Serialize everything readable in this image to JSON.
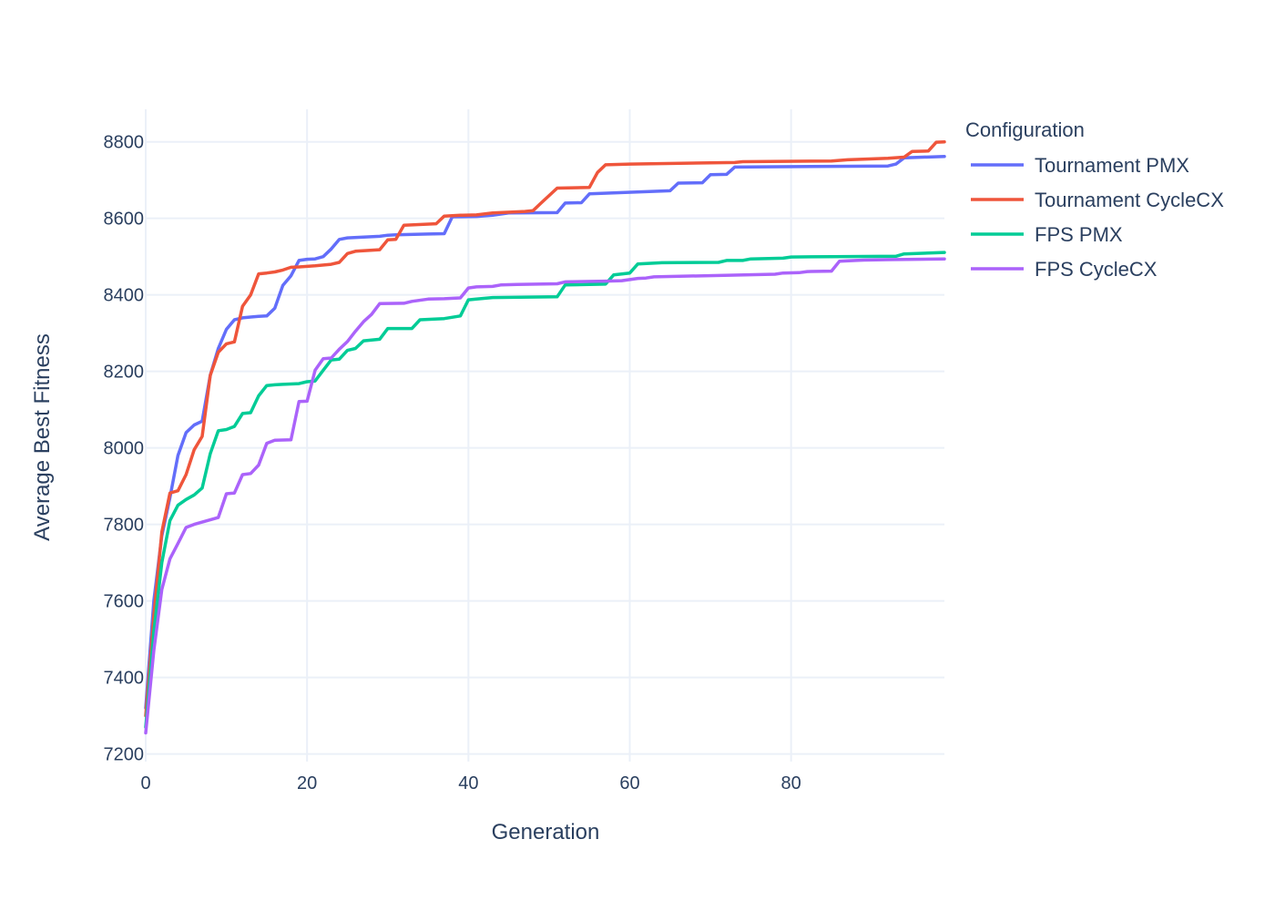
{
  "chart_data": {
    "type": "line",
    "xlabel": "Generation",
    "ylabel": "Average Best Fitness",
    "xlim": [
      0,
      99
    ],
    "ylim": [
      7180,
      8885
    ],
    "x_ticks": [
      0,
      20,
      40,
      60,
      80
    ],
    "y_ticks": [
      7200,
      7400,
      7600,
      7800,
      8000,
      8200,
      8400,
      8600,
      8800
    ],
    "grid": true,
    "legend": {
      "title": "Configuration",
      "position": "top-right outside"
    },
    "series": [
      {
        "name": "Tournament PMX",
        "color": "#636efa",
        "points": [
          [
            0,
            7320
          ],
          [
            1,
            7600
          ],
          [
            2,
            7770
          ],
          [
            3,
            7870
          ],
          [
            4,
            7980
          ],
          [
            5,
            8040
          ],
          [
            6,
            8060
          ],
          [
            7,
            8070
          ],
          [
            8,
            8190
          ],
          [
            9,
            8260
          ],
          [
            10,
            8310
          ],
          [
            11,
            8335
          ],
          [
            12,
            8340
          ],
          [
            13,
            8342
          ],
          [
            14,
            8344
          ],
          [
            15,
            8345
          ],
          [
            16,
            8365
          ],
          [
            17,
            8425
          ],
          [
            18,
            8450
          ],
          [
            19,
            8490
          ],
          [
            20,
            8493
          ],
          [
            21,
            8494
          ],
          [
            22,
            8500
          ],
          [
            23,
            8520
          ],
          [
            24,
            8545
          ],
          [
            25,
            8549
          ],
          [
            27,
            8551
          ],
          [
            29,
            8553
          ],
          [
            30,
            8556
          ],
          [
            31,
            8557
          ],
          [
            35,
            8559
          ],
          [
            37,
            8560
          ],
          [
            38,
            8604
          ],
          [
            41,
            8605
          ],
          [
            43,
            8608
          ],
          [
            45,
            8614
          ],
          [
            51,
            8615
          ],
          [
            52,
            8640
          ],
          [
            54,
            8641
          ],
          [
            55,
            8664
          ],
          [
            65,
            8672
          ],
          [
            66,
            8692
          ],
          [
            69,
            8693
          ],
          [
            70,
            8714
          ],
          [
            72,
            8715
          ],
          [
            73,
            8734
          ],
          [
            85,
            8736
          ],
          [
            92,
            8737
          ],
          [
            93,
            8742
          ],
          [
            94,
            8758
          ],
          [
            99,
            8762
          ]
        ]
      },
      {
        "name": "Tournament CycleCX",
        "color": "#ef553b",
        "points": [
          [
            0,
            7300
          ],
          [
            1,
            7560
          ],
          [
            2,
            7780
          ],
          [
            3,
            7882
          ],
          [
            4,
            7888
          ],
          [
            5,
            7930
          ],
          [
            6,
            7995
          ],
          [
            7,
            8030
          ],
          [
            8,
            8190
          ],
          [
            9,
            8250
          ],
          [
            10,
            8272
          ],
          [
            11,
            8277
          ],
          [
            12,
            8370
          ],
          [
            13,
            8400
          ],
          [
            14,
            8455
          ],
          [
            15,
            8457
          ],
          [
            16,
            8460
          ],
          [
            17,
            8465
          ],
          [
            18,
            8472
          ],
          [
            19,
            8473
          ],
          [
            21,
            8476
          ],
          [
            23,
            8480
          ],
          [
            24,
            8485
          ],
          [
            25,
            8508
          ],
          [
            26,
            8514
          ],
          [
            29,
            8518
          ],
          [
            30,
            8544
          ],
          [
            31,
            8545
          ],
          [
            32,
            8582
          ],
          [
            36,
            8586
          ],
          [
            37,
            8606
          ],
          [
            39,
            8608
          ],
          [
            41,
            8609
          ],
          [
            43,
            8614
          ],
          [
            47,
            8618
          ],
          [
            48,
            8620
          ],
          [
            49,
            8640
          ],
          [
            51,
            8679
          ],
          [
            55,
            8681
          ],
          [
            56,
            8720
          ],
          [
            57,
            8740
          ],
          [
            60,
            8742
          ],
          [
            73,
            8746
          ],
          [
            74,
            8748
          ],
          [
            85,
            8750
          ],
          [
            87,
            8753
          ],
          [
            92,
            8757
          ],
          [
            94,
            8760
          ],
          [
            95,
            8775
          ],
          [
            97,
            8776
          ],
          [
            98,
            8799
          ],
          [
            99,
            8800
          ]
        ]
      },
      {
        "name": "FPS PMX",
        "color": "#00cc96",
        "points": [
          [
            0,
            7270
          ],
          [
            1,
            7520
          ],
          [
            2,
            7700
          ],
          [
            3,
            7810
          ],
          [
            4,
            7850
          ],
          [
            5,
            7865
          ],
          [
            6,
            7877
          ],
          [
            7,
            7895
          ],
          [
            8,
            7985
          ],
          [
            9,
            8045
          ],
          [
            10,
            8048
          ],
          [
            11,
            8056
          ],
          [
            12,
            8090
          ],
          [
            13,
            8092
          ],
          [
            14,
            8136
          ],
          [
            15,
            8163
          ],
          [
            16,
            8165
          ],
          [
            17,
            8166
          ],
          [
            19,
            8168
          ],
          [
            20,
            8173
          ],
          [
            21,
            8175
          ],
          [
            22,
            8203
          ],
          [
            23,
            8230
          ],
          [
            24,
            8232
          ],
          [
            25,
            8255
          ],
          [
            26,
            8260
          ],
          [
            27,
            8280
          ],
          [
            29,
            8284
          ],
          [
            30,
            8312
          ],
          [
            33,
            8312
          ],
          [
            34,
            8335
          ],
          [
            37,
            8338
          ],
          [
            39,
            8345
          ],
          [
            40,
            8387
          ],
          [
            41,
            8389
          ],
          [
            43,
            8393
          ],
          [
            51,
            8395
          ],
          [
            52,
            8426
          ],
          [
            57,
            8428
          ],
          [
            58,
            8452
          ],
          [
            60,
            8457
          ],
          [
            61,
            8481
          ],
          [
            64,
            8484
          ],
          [
            71,
            8485
          ],
          [
            72,
            8490
          ],
          [
            74,
            8490
          ],
          [
            75,
            8494
          ],
          [
            79,
            8496
          ],
          [
            80,
            8499
          ],
          [
            85,
            8500
          ],
          [
            93,
            8501
          ],
          [
            94,
            8507
          ],
          [
            99,
            8511
          ]
        ]
      },
      {
        "name": "FPS CycleCX",
        "color": "#ab63fa",
        "points": [
          [
            0,
            7255
          ],
          [
            1,
            7470
          ],
          [
            2,
            7630
          ],
          [
            3,
            7710
          ],
          [
            4,
            7750
          ],
          [
            5,
            7792
          ],
          [
            6,
            7800
          ],
          [
            7,
            7806
          ],
          [
            8,
            7812
          ],
          [
            9,
            7818
          ],
          [
            10,
            7880
          ],
          [
            11,
            7882
          ],
          [
            12,
            7930
          ],
          [
            13,
            7933
          ],
          [
            14,
            7955
          ],
          [
            15,
            8012
          ],
          [
            16,
            8020
          ],
          [
            18,
            8021
          ],
          [
            19,
            8121
          ],
          [
            20,
            8122
          ],
          [
            21,
            8203
          ],
          [
            22,
            8233
          ],
          [
            23,
            8235
          ],
          [
            24,
            8258
          ],
          [
            25,
            8278
          ],
          [
            26,
            8305
          ],
          [
            27,
            8330
          ],
          [
            28,
            8349
          ],
          [
            29,
            8377
          ],
          [
            32,
            8378
          ],
          [
            33,
            8383
          ],
          [
            35,
            8389
          ],
          [
            37,
            8390
          ],
          [
            39,
            8392
          ],
          [
            40,
            8418
          ],
          [
            41,
            8421
          ],
          [
            43,
            8422
          ],
          [
            44,
            8426
          ],
          [
            46,
            8427
          ],
          [
            51,
            8429
          ],
          [
            52,
            8434
          ],
          [
            57,
            8436
          ],
          [
            59,
            8437
          ],
          [
            61,
            8443
          ],
          [
            62,
            8444
          ],
          [
            63,
            8447
          ],
          [
            78,
            8454
          ],
          [
            79,
            8457
          ],
          [
            81,
            8458
          ],
          [
            82,
            8461
          ],
          [
            85,
            8462
          ],
          [
            86,
            8488
          ],
          [
            88,
            8490
          ],
          [
            89,
            8491
          ],
          [
            92,
            8492
          ],
          [
            99,
            8494
          ]
        ]
      }
    ]
  }
}
